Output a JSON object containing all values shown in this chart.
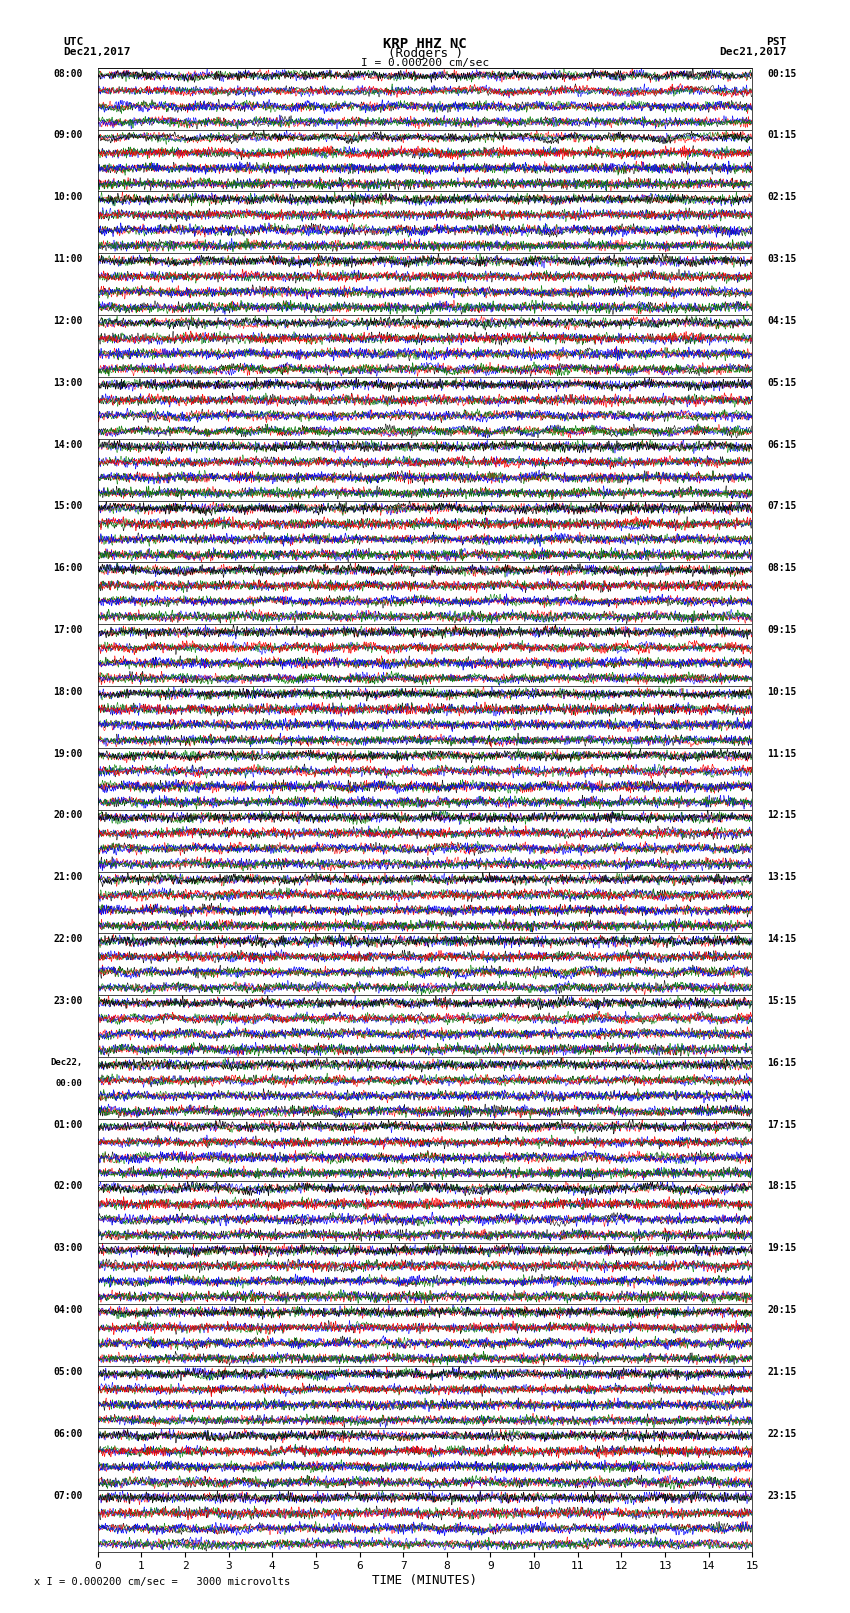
{
  "title_line1": "KRP HHZ NC",
  "title_line2": "(Rodgers )",
  "scale_label": "I = 0.000200 cm/sec",
  "bottom_label": "x I = 0.000200 cm/sec =   3000 microvolts",
  "xlabel": "TIME (MINUTES)",
  "utc_label": "UTC",
  "utc_date": "Dec21,2017",
  "pst_label": "PST",
  "pst_date": "Dec21,2017",
  "left_times": [
    "08:00",
    "09:00",
    "10:00",
    "11:00",
    "12:00",
    "13:00",
    "14:00",
    "15:00",
    "16:00",
    "17:00",
    "18:00",
    "19:00",
    "20:00",
    "21:00",
    "22:00",
    "23:00",
    "Dec22,\n00:00",
    "01:00",
    "02:00",
    "03:00",
    "04:00",
    "05:00",
    "06:00",
    "07:00"
  ],
  "right_times": [
    "00:15",
    "01:15",
    "02:15",
    "03:15",
    "04:15",
    "05:15",
    "06:15",
    "07:15",
    "08:15",
    "09:15",
    "10:15",
    "11:15",
    "12:15",
    "13:15",
    "14:15",
    "15:15",
    "16:15",
    "17:15",
    "18:15",
    "19:15",
    "20:15",
    "21:15",
    "22:15",
    "23:15"
  ],
  "n_hours": 24,
  "n_subrows": 4,
  "n_minutes": 15,
  "subrow_colors": [
    "black",
    "red",
    "blue",
    "green"
  ],
  "bg_color": "white",
  "seed": 42
}
